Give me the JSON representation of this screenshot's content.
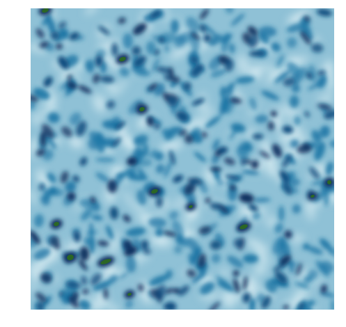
{
  "image": {
    "subject": "noise-field",
    "palette": {
      "background": "#ffffff",
      "deep_navy": "#0a2f5e",
      "dark_blue": "#0b4c7e",
      "mid_blue": "#1f77a6",
      "light_blue": "#8fc1d6",
      "pale_cyan": "#dbeef3",
      "core_green": "#2f6b1e"
    }
  }
}
